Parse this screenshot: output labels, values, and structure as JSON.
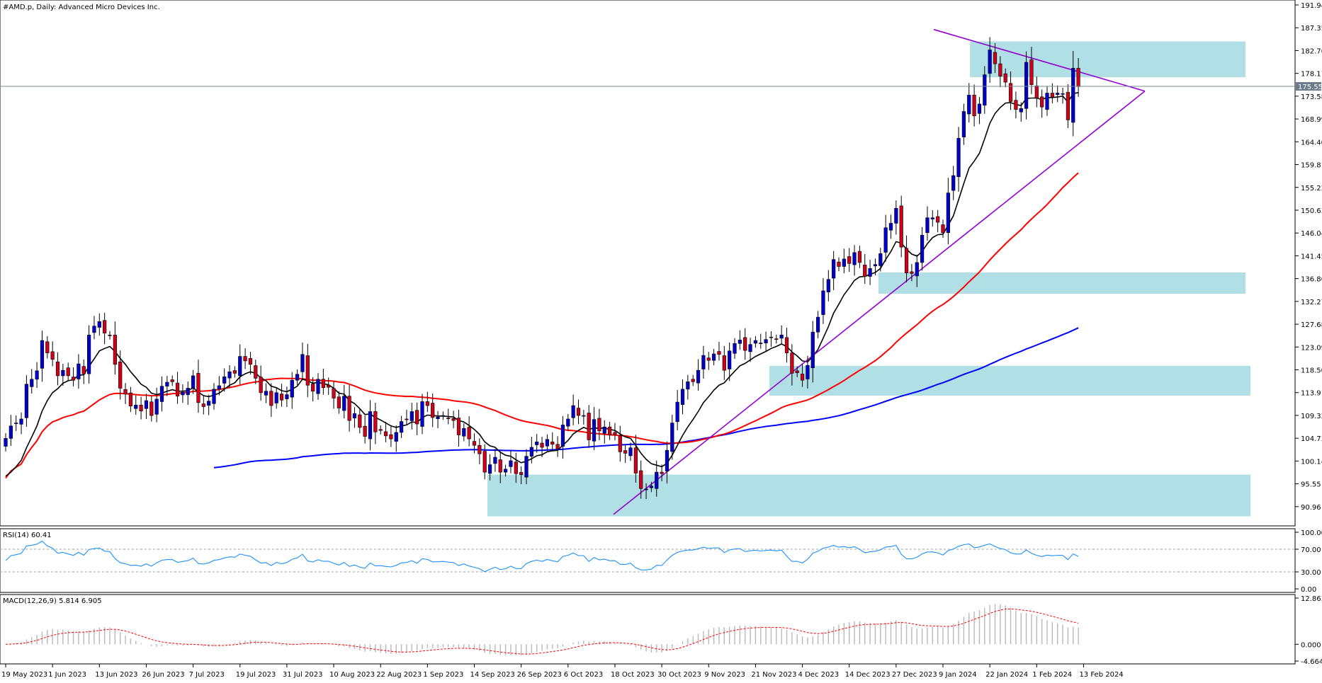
{
  "chart_data": {
    "type": "candlestick",
    "title": "#AMD.p, Daily:  Advanced Micro Devices Inc.",
    "price_axis": {
      "ticks": [
        "191.94",
        "187.35",
        "182.76",
        "178.17",
        "173.58",
        "168.99",
        "164.40",
        "159.81",
        "155.22",
        "150.63",
        "146.04",
        "141.45",
        "136.86",
        "132.27",
        "127.68",
        "123.09",
        "118.50",
        "113.91",
        "109.32",
        "104.73",
        "100.14",
        "95.55",
        "90.96"
      ],
      "ylim": [
        87.8,
        191.94
      ],
      "current_price": "175.55",
      "current_price_value": 175.55
    },
    "date_axis": {
      "ticks": [
        "19 May 2023",
        "1 Jun 2023",
        "13 Jun 2023",
        "26 Jun 2023",
        "7 Jul 2023",
        "19 Jul 2023",
        "31 Jul 2023",
        "10 Aug 2023",
        "22 Aug 2023",
        "1 Sep 2023",
        "14 Sep 2023",
        "26 Sep 2023",
        "6 Oct 2023",
        "18 Oct 2023",
        "30 Oct 2023",
        "9 Nov 2023",
        "21 Nov 2023",
        "4 Dec 2023",
        "14 Dec 2023",
        "27 Dec 2023",
        "9 Jan 2024",
        "22 Jan 2024",
        "1 Feb 2024",
        "13 Feb 2024"
      ],
      "tick_bar_index": [
        0,
        9,
        18,
        27,
        36,
        45,
        54,
        63,
        72,
        81,
        90,
        99,
        108,
        117,
        126,
        135,
        144,
        153,
        162,
        171,
        180,
        189,
        198,
        207
      ]
    },
    "closes": [
      104.7,
      107.2,
      107.8,
      108.6,
      115.6,
      116.6,
      118.3,
      124.4,
      121.9,
      120.6,
      117.3,
      118.4,
      117.3,
      116.4,
      119.7,
      117.7,
      125.5,
      127.3,
      128.2,
      125.9,
      125.5,
      119.6,
      114.8,
      113.6,
      111.2,
      111.4,
      110.2,
      112.3,
      109.3,
      112.6,
      115.2,
      116.0,
      116.1,
      113.2,
      114.0,
      114.8,
      117.3,
      111.9,
      111.1,
      112.2,
      114.6,
      115.3,
      117.1,
      118.1,
      117.8,
      121.2,
      120.3,
      119.6,
      116.8,
      113.9,
      114.2,
      111.3,
      113.9,
      112.4,
      113.5,
      116.4,
      117.6,
      121.6,
      115.4,
      114.2,
      116.6,
      114.9,
      115.0,
      112.8,
      110.8,
      113.2,
      108.3,
      109.7,
      106.9,
      105.1,
      110.1,
      106.0,
      106.3,
      105.2,
      104.6,
      105.9,
      108.1,
      108.5,
      110.1,
      107.6,
      112.1,
      111.3,
      108.9,
      109.0,
      109.3,
      108.7,
      108.3,
      105.4,
      106.7,
      104.6,
      103.3,
      101.6,
      97.9,
      99.4,
      100.9,
      97.9,
      98.5,
      100.2,
      97.6,
      97.4,
      101.1,
      102.9,
      104.0,
      102.9,
      104.5,
      103.5,
      102.6,
      107.4,
      108.6,
      111.3,
      109.3,
      109.3,
      104.4,
      108.5,
      106.2,
      107.0,
      105.4,
      105.5,
      102.0,
      101.7,
      102.8,
      97.7,
      94.6,
      94.5,
      95.1,
      97.9,
      97.6,
      102.3,
      107.8,
      112.0,
      114.6,
      116.1,
      116.1,
      118.4,
      121.4,
      120.4,
      121.7,
      121.6,
      118.4,
      122.3,
      123.8,
      124.5,
      122.4,
      123.6,
      124.4,
      123.9,
      124.6,
      125.0,
      124.6,
      125.5,
      121.9,
      117.8,
      117.9,
      116.4,
      119.4,
      126.1,
      129.1,
      134.4,
      136.7,
      140.7,
      139.3,
      140.8,
      139.9,
      142.1,
      140.1,
      137.3,
      138.9,
      139.7,
      141.9,
      147.1,
      148.0,
      151.0,
      143.2,
      138.0,
      137.9,
      140.1,
      145.6,
      149.1,
      149.1,
      148.2,
      146.1,
      154.1,
      157.6,
      165.1,
      170.5,
      173.8,
      169.6,
      172.0,
      177.9,
      182.9,
      180.1,
      177.6,
      176.4,
      172.5,
      170.9,
      171.1,
      180.4,
      175.9,
      173.2,
      171.4,
      174.2,
      173.4,
      174.2,
      174.1,
      168.8,
      179.2,
      175.5
    ],
    "series": [
      {
        "name": "",
        "color": "#000000",
        "values": [
          97.1,
          97.9,
          99.0,
          100.3,
          102.8,
          105.0,
          107.2,
          110.2,
          112.3,
          113.9,
          114.7,
          115.8,
          116.3,
          116.5,
          117.4,
          117.5,
          119.2,
          120.7,
          122.3,
          122.8,
          123.2,
          122.2,
          120.8,
          119.6,
          118.1,
          116.9,
          115.6,
          115.0,
          113.8,
          113.5,
          113.8,
          114.2,
          114.5,
          114.2,
          114.2,
          114.3,
          114.9,
          114.0,
          113.3,
          113.1,
          113.4,
          113.8,
          114.6,
          115.4,
          115.9,
          117.1,
          117.7,
          118.1,
          117.8,
          116.9,
          116.3,
          115.2,
          114.9,
          114.3,
          114.1,
          114.6,
          115.2,
          116.6,
          116.3,
          115.8,
          116.0,
          115.7,
          115.5,
          114.8,
          113.8,
          113.6,
          112.3,
          111.7,
          110.7,
          109.5,
          109.6,
          108.9,
          108.4,
          107.8,
          107.2,
          106.9,
          107.2,
          107.4,
          108.0,
          107.9,
          108.9,
          109.4,
          109.3,
          109.2,
          109.2,
          109.1,
          109.0,
          108.3,
          108.0,
          107.3,
          106.5,
          105.5,
          104.0,
          103.2,
          102.9,
          101.9,
          101.3,
          101.1,
          100.4,
          99.8,
          100.1,
          100.6,
          101.2,
          101.4,
          102.0,
          102.2,
          102.3,
          103.3,
          104.3,
          105.6,
          106.3,
          106.9,
          106.5,
          106.8,
          106.7,
          106.8,
          106.5,
          106.3,
          105.6,
          105.0,
          104.7,
          103.3,
          101.7,
          100.5,
          99.6,
          99.3,
          99.0,
          99.7,
          101.3,
          103.3,
          105.3,
          107.0,
          108.5,
          110.1,
          111.9,
          113.1,
          114.4,
          115.4,
          115.9,
          117.1,
          118.2,
          119.3,
          119.8,
          120.5,
          121.2,
          121.7,
          122.2,
          122.8,
          123.2,
          123.7,
          123.2,
          122.1,
          121.3,
          120.3,
          120.1,
          121.2,
          122.6,
          124.9,
          127.2,
          129.9,
          131.7,
          133.6,
          135.0,
          136.5,
          137.2,
          137.3,
          137.7,
          138.1,
          138.9,
          140.7,
          142.3,
          144.3,
          144.0,
          142.8,
          141.8,
          141.4,
          142.3,
          143.9,
          145.1,
          145.7,
          145.8,
          147.6,
          149.5,
          152.7,
          156.0,
          159.1,
          160.5,
          162.1,
          165.0,
          168.1,
          170.1,
          171.3,
          172.2,
          172.3,
          171.9,
          171.7,
          173.1,
          173.2,
          173.2,
          172.9,
          173.3,
          173.3,
          173.4,
          173.6,
          172.4,
          174.1,
          174.3
        ]
      },
      {
        "name": "",
        "color": "#ff0000",
        "values": [
          null,
          null,
          null,
          null,
          null,
          null,
          null,
          null,
          null,
          null,
          null,
          null,
          null,
          null,
          null,
          null,
          null,
          null,
          null,
          null,
          null,
          null,
          null,
          null,
          null,
          null,
          null,
          null,
          null,
          null,
          null,
          null,
          null,
          null,
          null,
          null,
          null,
          null,
          null,
          null,
          null,
          null,
          null,
          null,
          null,
          null,
          null,
          null,
          null,
          null,
          null,
          null,
          null,
          null,
          null,
          null,
          null,
          null,
          null,
          null,
          null,
          null,
          null,
          null,
          null,
          null,
          null,
          null,
          null,
          null,
          null,
          null,
          null,
          null,
          null,
          null,
          null,
          null,
          null,
          null,
          null,
          null,
          null,
          null,
          null,
          null,
          null,
          null,
          null,
          null,
          null,
          null,
          null,
          null,
          null,
          null,
          null,
          null,
          null,
          null,
          null,
          null,
          null,
          null,
          null,
          null,
          null,
          null,
          null,
          null,
          null,
          null,
          null,
          null,
          null,
          null,
          null,
          null,
          null,
          null,
          null,
          null,
          null,
          null,
          null,
          null,
          null,
          null,
          null,
          null,
          null,
          null,
          null,
          null,
          null,
          null,
          null,
          null,
          null,
          null,
          null,
          null,
          null,
          null,
          null,
          null,
          null,
          null,
          null,
          null,
          null,
          null,
          null,
          null,
          null,
          null,
          null,
          null,
          null,
          null,
          null,
          null,
          null,
          null,
          null,
          null,
          null,
          null,
          null,
          null,
          null,
          null,
          null,
          null,
          null,
          null,
          null,
          null,
          null,
          null,
          null,
          null,
          null,
          null,
          null,
          null,
          null,
          null,
          null,
          null,
          null,
          null,
          null,
          null,
          null,
          null,
          null,
          null,
          null,
          null,
          null,
          null,
          null,
          null,
          null,
          null,
          null,
          null,
          null
        ]
      },
      {
        "name": "",
        "color": "#0000ff",
        "values": []
      }
    ],
    "zones": [
      {
        "from": 89.0,
        "to": 97.4
      },
      {
        "from": 113.3,
        "to": 119.3
      },
      {
        "from": 133.8,
        "to": 138.1
      },
      {
        "from": 177.4,
        "to": 184.6
      }
    ],
    "rsi": {
      "label": "RSI(14) 60.41",
      "ticks": [
        "100.00",
        "70.00",
        "30.00",
        "0.00"
      ],
      "levels": [
        70,
        30
      ]
    },
    "macd": {
      "label": "MACD(12,26,9) 5.814 6.905",
      "ticks": [
        "12.863",
        "0.000",
        "-4.664"
      ],
      "ylim": [
        -4.664,
        12.863
      ]
    }
  }
}
